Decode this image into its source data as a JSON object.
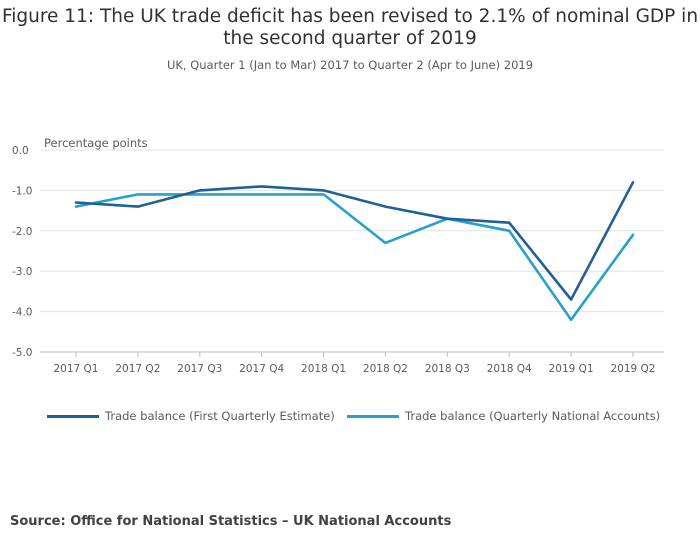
{
  "chart_data": {
    "type": "line",
    "title": "Figure 11: The UK trade deficit has been revised to 2.1% of nominal GDP in the second quarter of 2019",
    "subtitle": "UK, Quarter 1 (Jan to Mar) 2017 to Quarter 2 (Apr to June) 2019",
    "ylabel": "Percentage points",
    "xlabel": "",
    "categories": [
      "2017 Q1",
      "2017 Q2",
      "2017 Q3",
      "2017 Q4",
      "2018 Q1",
      "2018 Q2",
      "2018 Q3",
      "2018 Q4",
      "2019 Q1",
      "2019 Q2"
    ],
    "yticks": [
      "0.0",
      "-1.0",
      "-2.0",
      "-3.0",
      "-4.0",
      "-5.0"
    ],
    "ylim": [
      -5,
      0
    ],
    "grid": true,
    "legend_position": "bottom",
    "series": [
      {
        "name": "Trade balance (First Quarterly Estimate)",
        "color": "#206095",
        "values": [
          -1.3,
          -1.4,
          -1.0,
          -0.9,
          -1.0,
          -1.4,
          -1.7,
          -1.8,
          -3.7,
          -0.8
        ]
      },
      {
        "name": "Trade balance (Quarterly National Accounts)",
        "color": "#27a0cc",
        "values": [
          -1.4,
          -1.1,
          -1.1,
          -1.1,
          -1.1,
          -2.3,
          -1.7,
          -2.0,
          -4.2,
          -2.1
        ]
      }
    ]
  },
  "source": "Source: Office for National Statistics – UK National Accounts"
}
